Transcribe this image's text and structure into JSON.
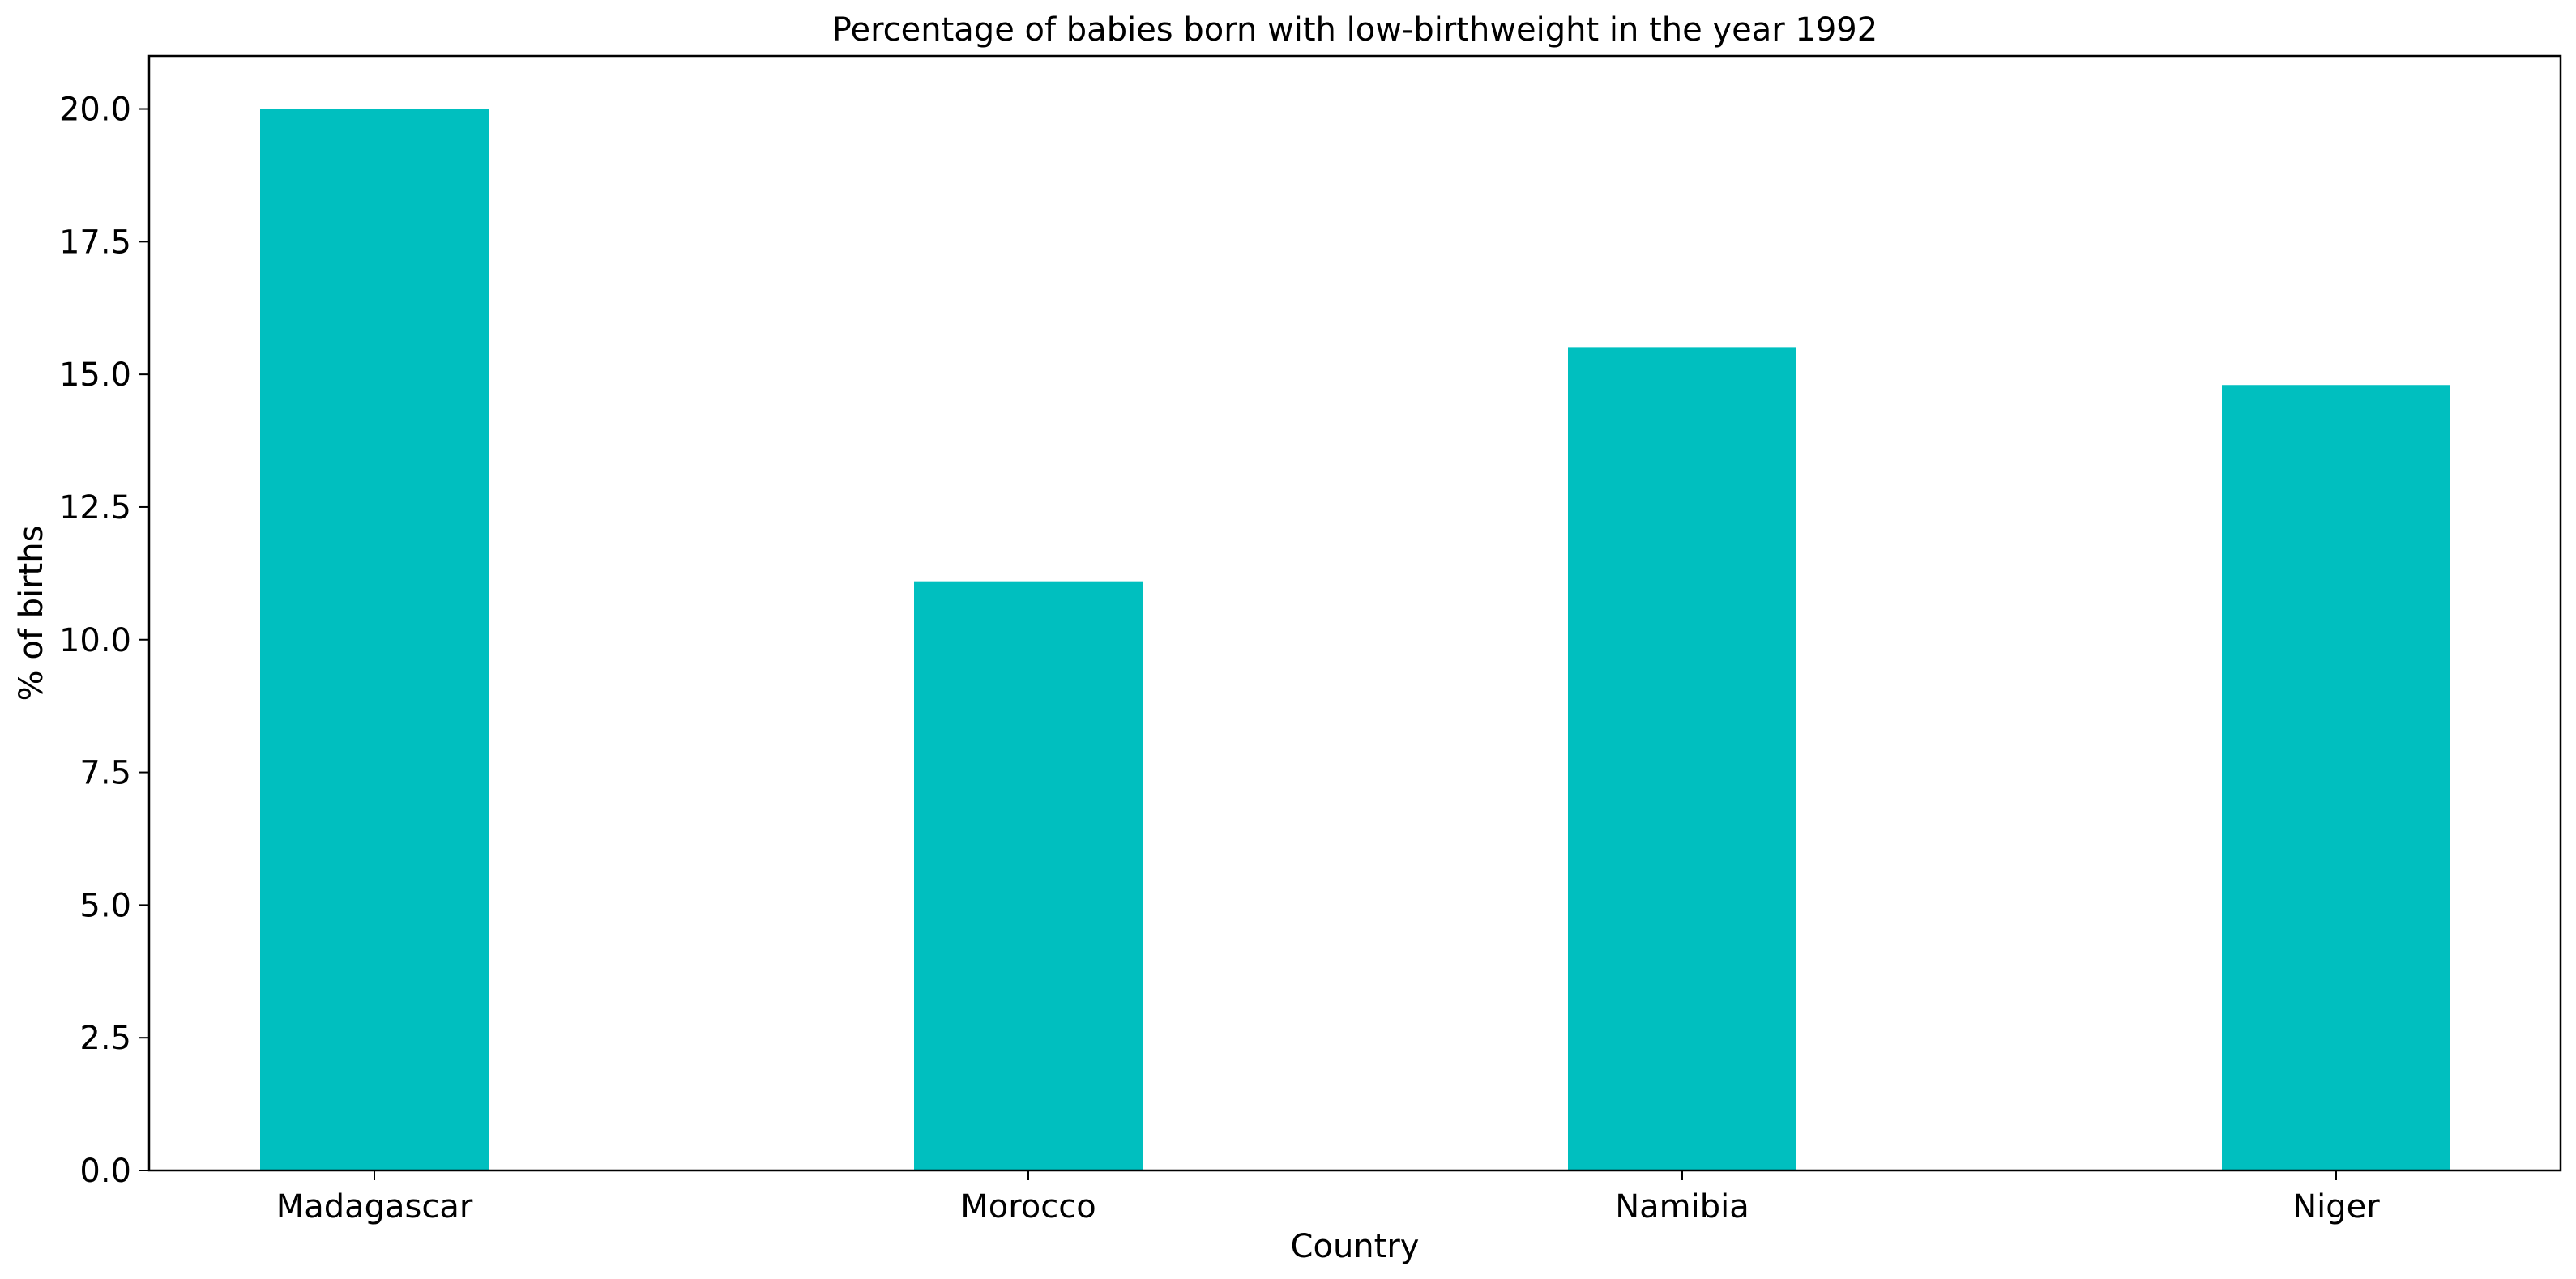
{
  "chart_data": {
    "type": "bar",
    "title": "Percentage of babies born with low-birthweight in the year 1992",
    "xlabel": "Country",
    "ylabel": "% of births",
    "categories": [
      "Madagascar",
      "Morocco",
      "Namibia",
      "Niger"
    ],
    "values": [
      20.0,
      11.1,
      15.5,
      14.8
    ],
    "ylim": [
      0,
      21
    ],
    "yticks": [
      "0.0",
      "2.5",
      "5.0",
      "7.5",
      "10.0",
      "12.5",
      "15.0",
      "17.5",
      "20.0"
    ],
    "bar_color": "#00bfbf",
    "grid": false,
    "legend": "none"
  }
}
